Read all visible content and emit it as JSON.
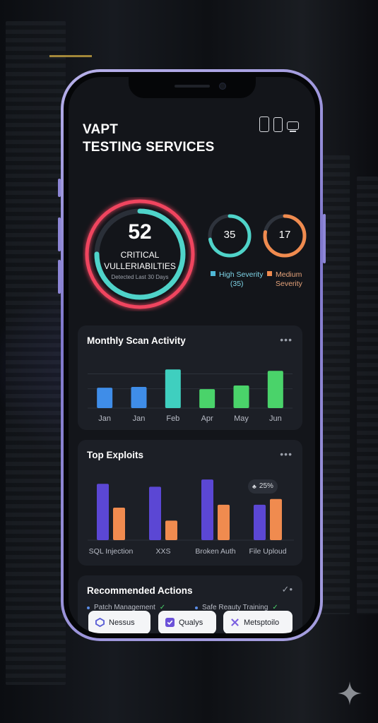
{
  "header": {
    "title_line1": "VAPT",
    "title_line2": "TESTING SERVICES",
    "device_icons": [
      "tablet-icon",
      "phone-icon",
      "monitor-icon"
    ]
  },
  "summary": {
    "critical": {
      "value": "52",
      "label_line1": "CRITICAL",
      "label_line2": "VULLERIABILTIES",
      "sub": "Detected Last 30 Days",
      "color": "#f0455e",
      "ring_color": "#4fd3c9"
    },
    "high": {
      "value": "35",
      "legend_line1": "High Severity",
      "legend_line2": "(35)",
      "color": "#4fd3c9"
    },
    "medium": {
      "value": "17",
      "legend_line1": "Medium",
      "legend_line2": "Severity",
      "color": "#f08b4f"
    }
  },
  "monthly": {
    "title": "Monthly Scan Activity",
    "menu": "•••",
    "chart_data": {
      "type": "bar",
      "categories": [
        "Jan",
        "Jan",
        "Feb",
        "Apr",
        "May",
        "Jun"
      ],
      "values": [
        28,
        29,
        53,
        26,
        31,
        51
      ],
      "colors": [
        "#3f8de8",
        "#3f8de8",
        "#3fcfbf",
        "#4ad36a",
        "#4ad36a",
        "#4ad36a"
      ],
      "ylim": [
        0,
        60
      ],
      "grid": true
    }
  },
  "exploits": {
    "title": "Top Exploits",
    "menu": "•••",
    "badge": "25%",
    "chart_data": {
      "type": "bar",
      "categories": [
        "SQL Injection",
        "XXS",
        "Broken Auth",
        "File Uploud"
      ],
      "series": [
        {
          "values": [
            78,
            74,
            84,
            49
          ],
          "color": "#5b47d4"
        },
        {
          "values": [
            45,
            27,
            49,
            57
          ],
          "color": "#f08b4f"
        }
      ],
      "ylim": [
        0,
        90
      ]
    }
  },
  "actions": {
    "title": "Recommended Actions",
    "items": [
      "Patch Management",
      "Safe Reauty Training"
    ]
  },
  "tools": [
    {
      "name": "Nessus",
      "icon": "nessus-icon",
      "color": "#5b5fd6"
    },
    {
      "name": "Qualys",
      "icon": "qualys-icon",
      "color": "#6b51d8"
    },
    {
      "name": "Metsptoilo",
      "icon": "metasploit-icon",
      "color": "#7a5ee0"
    }
  ]
}
